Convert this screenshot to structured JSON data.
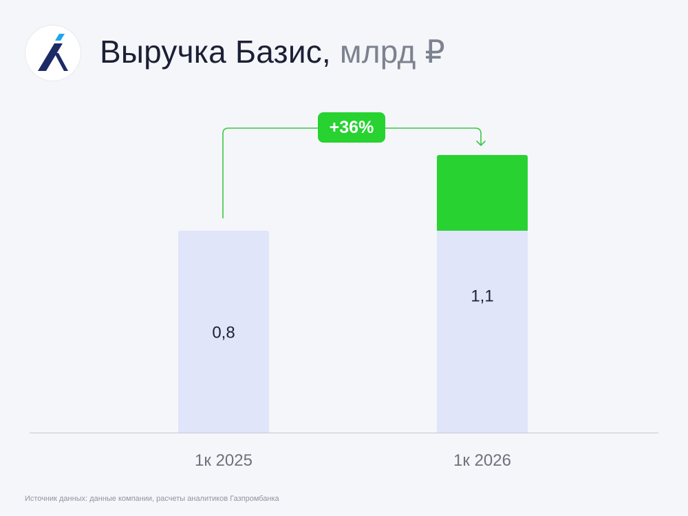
{
  "header": {
    "title": "Выручка Базис,",
    "unit": "млрд ₽"
  },
  "chart_data": {
    "type": "bar",
    "title": "Выручка Базис, млрд ₽",
    "categories": [
      "1к 2025",
      "1к 2026"
    ],
    "values": [
      0.8,
      1.1
    ],
    "value_labels": [
      "0,8",
      "1,1"
    ],
    "increase": {
      "label": "+36%",
      "from": "1к 2025",
      "to": "1к 2026"
    },
    "ylim": [
      0,
      1.1
    ],
    "grid": false,
    "legend": "none",
    "colors": {
      "base_bar": "#e1e5fa",
      "growth_bar": "#27d231",
      "arrow": "#3bc545",
      "baseline": "#c5c8d0",
      "value_text": "#1b2036",
      "tick_text": "#6c717d"
    }
  },
  "footer": {
    "source": "Источник данных: данные компании, расчеты аналитиков Газпромбанка"
  },
  "logo": {
    "icon": "basis-logo-icon",
    "colors": {
      "dark": "#1c2a66",
      "accent": "#1fa6e8"
    }
  }
}
